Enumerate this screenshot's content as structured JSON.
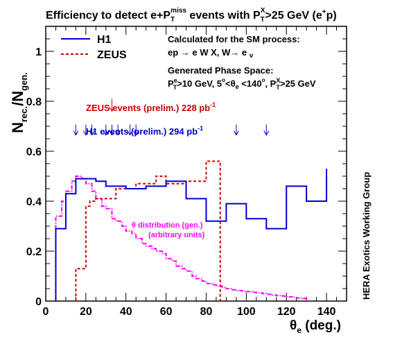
{
  "chart_data": {
    "type": "line",
    "title": {
      "main": "Efficiency to detect e+P",
      "T1": "T",
      "miss": "miss",
      "mid": " events with P",
      "T2": "T",
      "X": "X",
      "tail": ">25 GeV (e",
      "plus": "+",
      "end": "p)"
    },
    "xlim": [
      0,
      150
    ],
    "ylim": [
      0,
      1.1
    ],
    "x_ticks": [
      0,
      20,
      40,
      60,
      80,
      100,
      120,
      140
    ],
    "y_ticks": [
      0,
      0.2,
      0.4,
      0.6,
      0.8,
      1
    ],
    "x_tick_labels": [
      "0",
      "20",
      "40",
      "60",
      "80",
      "100",
      "120",
      "140"
    ],
    "y_tick_labels": [
      "0",
      "0.2",
      "0.4",
      "0.6",
      "0.8",
      "1"
    ],
    "xlabel": {
      "theta": "θ",
      "sub": "e",
      "rest": " (deg.)"
    },
    "ylabel": {
      "N1": "N",
      "sub1": "rec.",
      "slash": "/N",
      "sub2": "gen."
    },
    "series": [
      {
        "name": "H1",
        "color": "#0000cc",
        "style": "solid",
        "edges": [
          5,
          10,
          15,
          25,
          30,
          40,
          50,
          60,
          70,
          80,
          90,
          100,
          110,
          120,
          130,
          140
        ],
        "values": [
          0.29,
          0.43,
          0.49,
          0.48,
          0.46,
          0.45,
          0.46,
          0.48,
          0.41,
          0.32,
          0.39,
          0.33,
          0.29,
          0.46,
          0.4,
          0.53
        ]
      },
      {
        "name": "ZEUS",
        "color": "#cc0000",
        "style": "dashed",
        "edges": [
          15,
          20,
          22,
          25,
          35,
          45,
          55,
          60,
          70,
          80,
          87
        ],
        "values": [
          0.13,
          0.38,
          0.4,
          0.41,
          0.45,
          0.47,
          0.5,
          0.47,
          0.48,
          0.56
        ]
      },
      {
        "name": "θ distribution (gen.)",
        "color": "#ff00ff",
        "style": "dashdot",
        "edges": [
          5,
          8,
          10,
          13,
          15,
          18,
          20,
          23,
          25,
          28,
          30,
          33,
          35,
          38,
          40,
          43,
          45,
          48,
          50,
          53,
          55,
          58,
          60,
          63,
          65,
          68,
          70,
          73,
          75,
          78,
          80,
          83,
          85,
          88,
          90,
          93,
          95,
          98,
          100,
          103,
          105,
          108,
          110,
          113,
          115,
          118,
          120,
          123,
          125,
          128,
          130
        ],
        "values": [
          0.34,
          0.4,
          0.44,
          0.48,
          0.5,
          0.49,
          0.47,
          0.44,
          0.41,
          0.38,
          0.37,
          0.33,
          0.32,
          0.3,
          0.28,
          0.27,
          0.25,
          0.23,
          0.22,
          0.21,
          0.2,
          0.19,
          0.17,
          0.16,
          0.14,
          0.13,
          0.12,
          0.1,
          0.09,
          0.08,
          0.07,
          0.065,
          0.06,
          0.055,
          0.05,
          0.045,
          0.042,
          0.04,
          0.038,
          0.035,
          0.033,
          0.03,
          0.027,
          0.024,
          0.022,
          0.02,
          0.017,
          0.015,
          0.012,
          0.01
        ]
      }
    ],
    "arrows": {
      "h1_x": [
        15,
        20,
        23,
        30,
        33,
        36,
        42,
        45,
        95,
        110
      ],
      "h1_y": 0.665,
      "h1_color": "#0000cc",
      "zeus_x": [
        33
      ],
      "zeus_y": 0.76,
      "zeus_color": "#cc0000"
    },
    "legend": {
      "position": "top-left",
      "entries": [
        {
          "label": "H1",
          "color": "#0000cc",
          "style": "solid"
        },
        {
          "label": "ZEUS",
          "color": "#cc0000",
          "style": "dashed"
        }
      ]
    },
    "annotations": {
      "calc1": "Calculated for the SM process:",
      "calc2_a": "ep ",
      "calc2_arrow": "→",
      "calc2_b": " e W X, W",
      "calc2_arrow2": "→",
      "calc2_c": " e ",
      "calc2_nu": "ν",
      "gen1": "Generated Phase Space:",
      "gen2_P": "P",
      "gen2_Psup": "e",
      "gen2_Psub": "T",
      "gen2_a": ">10 GeV, 5",
      "gen2_deg": "o",
      "gen2_b": "<θ",
      "gen2_e": "e",
      "gen2_c": " <140",
      "gen2_deg2": "o",
      "gen2_d": ", P",
      "gen2_Xsup": "X",
      "gen2_Xsub": "T",
      "gen2_e2": ">25 GeV",
      "zeus_events": "ZEUS events (prelim.) 228 pb",
      "zeus_exp": "-1",
      "h1_events": "H1 events (prelim.) 294 pb",
      "h1_exp": "-1",
      "theta_dist1": "θ distribution (gen.)",
      "theta_dist2": "(arbitrary units)",
      "side_label": "HERA  Exotics Working Group",
      "zeus_color": "#cc0000",
      "h1_color": "#0000cc",
      "theta_color": "#ff00ff"
    }
  }
}
